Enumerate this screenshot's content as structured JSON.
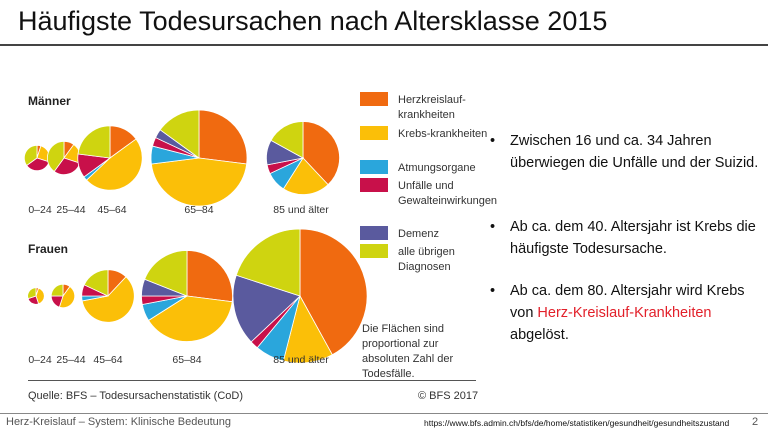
{
  "slide": {
    "title": "Häufigste Todesursachen nach Altersklasse 2015",
    "footer_left": "Herz-Kreislauf – System:  Klinische Bedeutung",
    "footer_url": "https://www.bfs.admin.ch/bfs/de/home/statistiken/gesundheit/gesundheitszustand",
    "page_number": "2"
  },
  "bullets": [
    {
      "text": "Zwischen 16 und ca. 34 Jahren überwiegen die Unfälle und der Suizid."
    },
    {
      "text": "Ab ca. dem 40. Altersjahr ist Krebs die häufigste Todesursache."
    },
    {
      "pre": "Ab ca. dem 80. Altersjahr wird Krebs von ",
      "highlight": "Herz-Kreislauf-Krankheiten",
      "post": " abgelöst.",
      "highlight_color": "#e2202a"
    }
  ],
  "chart_data": {
    "type": "pie",
    "note": "Die Flächen sind proportional zur absoluten Zahl der Todesfälle.",
    "source": "Quelle: BFS – Todesursachenstatistik (CoD)",
    "copyright": "© BFS 2017",
    "legend": [
      {
        "label": "Herzkreislauf-krankheiten",
        "color": "#f06a10"
      },
      {
        "label": "Krebs-krankheiten",
        "color": "#fbbf08"
      },
      {
        "label": "Atmungsorgane",
        "color": "#2aa6dc"
      },
      {
        "label": "Unfälle und Gewalteinwirkungen",
        "color": "#c8104a"
      },
      {
        "label": "Demenz",
        "color": "#5a5a9e"
      },
      {
        "label": "alle übrigen Diagnosen",
        "color": "#cfd410"
      }
    ],
    "groups": [
      {
        "name": "Männer",
        "categories": [
          "0–24",
          "25–44",
          "45–64",
          "65–84",
          "85 und älter"
        ],
        "relative_size": [
          0.07,
          0.12,
          0.45,
          1.0,
          0.58
        ],
        "shares": [
          [
            5,
            25,
            0,
            35,
            0,
            35
          ],
          [
            10,
            20,
            0,
            30,
            0,
            40
          ],
          [
            15,
            48,
            2,
            12,
            0,
            23
          ],
          [
            27,
            46,
            6,
            3,
            3,
            15
          ],
          [
            38,
            21,
            9,
            4,
            11,
            17
          ]
        ]
      },
      {
        "name": "Frauen",
        "categories": [
          "0–24",
          "25–44",
          "45–64",
          "65–84",
          "85 und älter"
        ],
        "relative_size": [
          0.03,
          0.06,
          0.3,
          0.9,
          1.95
        ],
        "shares": [
          [
            5,
            40,
            0,
            25,
            0,
            30
          ],
          [
            10,
            45,
            0,
            20,
            0,
            25
          ],
          [
            12,
            60,
            3,
            7,
            0,
            18
          ],
          [
            27,
            39,
            6,
            3,
            6,
            19
          ],
          [
            42,
            12,
            7,
            2,
            17,
            20
          ]
        ]
      }
    ]
  }
}
